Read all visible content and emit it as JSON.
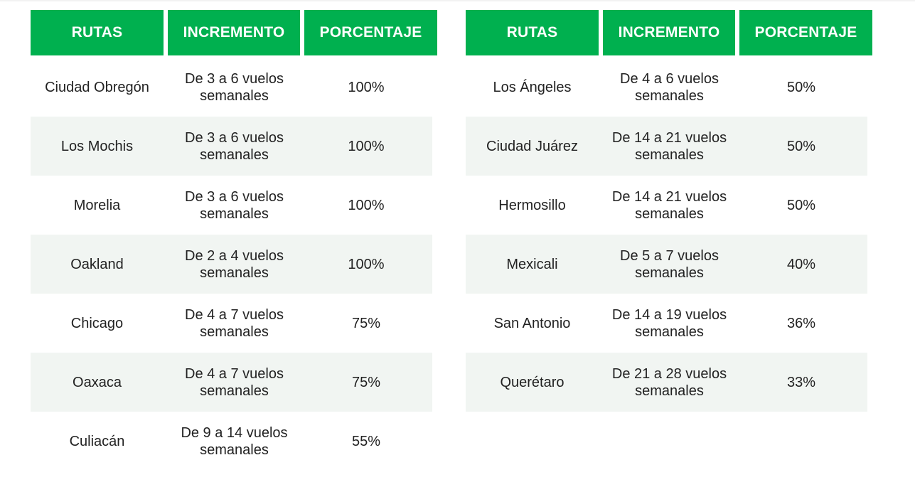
{
  "headers": [
    "RUTAS",
    "INCREMENTO",
    "PORCENTAJE"
  ],
  "left_table": [
    {
      "route": "Ciudad Obregón",
      "inc1": "De 3 a 6 vuelos",
      "inc2": "semanales",
      "pct": "100%"
    },
    {
      "route": "Los Mochis",
      "inc1": "De 3 a 6 vuelos",
      "inc2": "semanales",
      "pct": "100%"
    },
    {
      "route": "Morelia",
      "inc1": "De 3 a 6 vuelos",
      "inc2": "semanales",
      "pct": "100%"
    },
    {
      "route": "Oakland",
      "inc1": "De 2 a 4 vuelos",
      "inc2": "semanales",
      "pct": "100%"
    },
    {
      "route": "Chicago",
      "inc1": "De 4 a 7 vuelos",
      "inc2": "semanales",
      "pct": "75%"
    },
    {
      "route": "Oaxaca",
      "inc1": "De 4 a 7 vuelos",
      "inc2": "semanales",
      "pct": "75%"
    },
    {
      "route": "Culiacán",
      "inc1": "De 9 a 14 vuelos",
      "inc2": "semanales",
      "pct": "55%"
    }
  ],
  "right_table": [
    {
      "route": "Los Ángeles",
      "inc1": "De 4 a 6 vuelos",
      "inc2": "semanales",
      "pct": "50%"
    },
    {
      "route": "Ciudad Juárez",
      "inc1": "De 14 a 21 vuelos",
      "inc2": "semanales",
      "pct": "50%"
    },
    {
      "route": "Hermosillo",
      "inc1": "De 14 a 21 vuelos",
      "inc2": "semanales",
      "pct": "50%"
    },
    {
      "route": "Mexicali",
      "inc1": "De 5 a 7 vuelos",
      "inc2": "semanales",
      "pct": "40%"
    },
    {
      "route": "San Antonio",
      "inc1": "De 14 a 19 vuelos",
      "inc2": "semanales",
      "pct": "36%"
    },
    {
      "route": "Querétaro",
      "inc1": "De 21 a 28 vuelos",
      "inc2": "semanales",
      "pct": "33%"
    }
  ],
  "colors": {
    "header_bg": "#00b04f",
    "header_text": "#ffffff",
    "row_shade": "#f1f5f2"
  }
}
